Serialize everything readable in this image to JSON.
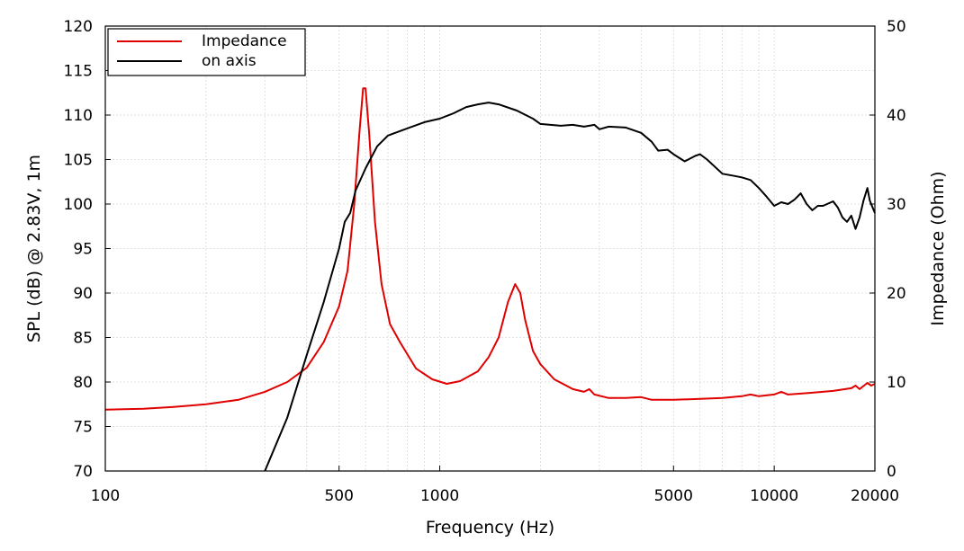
{
  "chart_data": {
    "type": "line",
    "xlabel": "Frequency (Hz)",
    "ylabel": "SPL (dB) @ 2.83V, 1m",
    "y2label": "Impedance (Ohm)",
    "xscale": "log",
    "xlim": [
      100,
      20000
    ],
    "ylim": [
      70,
      120
    ],
    "y2lim": [
      0,
      50
    ],
    "grid": true,
    "legend_position": "top-left",
    "xticks": [
      100,
      500,
      1000,
      5000,
      10000,
      20000
    ],
    "xtick_labels": [
      "100",
      "500",
      "1000",
      "5000",
      "10000",
      "20000"
    ],
    "yticks": [
      70,
      75,
      80,
      85,
      90,
      95,
      100,
      105,
      110,
      115,
      120
    ],
    "ytick_labels": [
      "70",
      "75",
      "80",
      "85",
      "90",
      "95",
      "100",
      "105",
      "110",
      "115",
      "120"
    ],
    "y2ticks": [
      0,
      10,
      20,
      30,
      40,
      50
    ],
    "y2tick_labels": [
      "0",
      "10",
      "20",
      "30",
      "40",
      "50"
    ],
    "series": [
      {
        "name": "Impedance",
        "axis": "right",
        "color": "#e00000",
        "points": [
          [
            100,
            6.9
          ],
          [
            130,
            7.0
          ],
          [
            160,
            7.2
          ],
          [
            200,
            7.5
          ],
          [
            250,
            8.0
          ],
          [
            300,
            8.9
          ],
          [
            350,
            10.0
          ],
          [
            400,
            11.6
          ],
          [
            450,
            14.5
          ],
          [
            500,
            18.5
          ],
          [
            530,
            22.5
          ],
          [
            555,
            30.0
          ],
          [
            575,
            38.0
          ],
          [
            590,
            43.0
          ],
          [
            600,
            43.0
          ],
          [
            615,
            38.0
          ],
          [
            640,
            28.0
          ],
          [
            670,
            21.0
          ],
          [
            710,
            16.5
          ],
          [
            760,
            14.5
          ],
          [
            850,
            11.5
          ],
          [
            950,
            10.3
          ],
          [
            1050,
            9.8
          ],
          [
            1150,
            10.1
          ],
          [
            1300,
            11.2
          ],
          [
            1400,
            12.8
          ],
          [
            1500,
            15.0
          ],
          [
            1600,
            19.0
          ],
          [
            1680,
            21.0
          ],
          [
            1740,
            20.0
          ],
          [
            1800,
            17.0
          ],
          [
            1900,
            13.5
          ],
          [
            2000,
            12.0
          ],
          [
            2200,
            10.3
          ],
          [
            2500,
            9.2
          ],
          [
            2700,
            8.9
          ],
          [
            2800,
            9.2
          ],
          [
            2900,
            8.6
          ],
          [
            3200,
            8.2
          ],
          [
            3600,
            8.2
          ],
          [
            4000,
            8.3
          ],
          [
            4300,
            8.0
          ],
          [
            5000,
            8.0
          ],
          [
            6000,
            8.1
          ],
          [
            7000,
            8.2
          ],
          [
            8000,
            8.4
          ],
          [
            8500,
            8.6
          ],
          [
            9000,
            8.4
          ],
          [
            10000,
            8.6
          ],
          [
            10500,
            8.9
          ],
          [
            11000,
            8.6
          ],
          [
            12000,
            8.7
          ],
          [
            13000,
            8.8
          ],
          [
            15000,
            9.0
          ],
          [
            17000,
            9.3
          ],
          [
            17500,
            9.6
          ],
          [
            18000,
            9.2
          ],
          [
            19000,
            9.9
          ],
          [
            19500,
            9.6
          ],
          [
            20000,
            9.8
          ]
        ]
      },
      {
        "name": "on axis",
        "axis": "left",
        "color": "#000000",
        "points": [
          [
            300,
            70.0
          ],
          [
            350,
            76.0
          ],
          [
            400,
            83.0
          ],
          [
            450,
            89.0
          ],
          [
            500,
            95.0
          ],
          [
            520,
            98.0
          ],
          [
            540,
            99.0
          ],
          [
            560,
            101.5
          ],
          [
            600,
            104.0
          ],
          [
            650,
            106.5
          ],
          [
            700,
            107.7
          ],
          [
            800,
            108.5
          ],
          [
            900,
            109.2
          ],
          [
            1000,
            109.6
          ],
          [
            1100,
            110.2
          ],
          [
            1200,
            110.9
          ],
          [
            1300,
            111.2
          ],
          [
            1400,
            111.4
          ],
          [
            1500,
            111.2
          ],
          [
            1700,
            110.5
          ],
          [
            1900,
            109.6
          ],
          [
            2000,
            109.0
          ],
          [
            2300,
            108.8
          ],
          [
            2500,
            108.9
          ],
          [
            2700,
            108.7
          ],
          [
            2900,
            108.9
          ],
          [
            3000,
            108.4
          ],
          [
            3200,
            108.7
          ],
          [
            3600,
            108.6
          ],
          [
            4000,
            108.0
          ],
          [
            4300,
            107.0
          ],
          [
            4500,
            106.0
          ],
          [
            4800,
            106.1
          ],
          [
            5000,
            105.6
          ],
          [
            5400,
            104.8
          ],
          [
            5800,
            105.4
          ],
          [
            6000,
            105.6
          ],
          [
            6300,
            105.0
          ],
          [
            7000,
            103.4
          ],
          [
            7500,
            103.2
          ],
          [
            8000,
            103.0
          ],
          [
            8500,
            102.7
          ],
          [
            9000,
            101.8
          ],
          [
            9500,
            100.8
          ],
          [
            10000,
            99.8
          ],
          [
            10500,
            100.2
          ],
          [
            11000,
            100.0
          ],
          [
            11500,
            100.5
          ],
          [
            12000,
            101.2
          ],
          [
            12500,
            100.0
          ],
          [
            13000,
            99.3
          ],
          [
            13500,
            99.8
          ],
          [
            14000,
            99.8
          ],
          [
            15000,
            100.3
          ],
          [
            15500,
            99.6
          ],
          [
            16000,
            98.5
          ],
          [
            16500,
            98.0
          ],
          [
            17000,
            98.7
          ],
          [
            17500,
            97.2
          ],
          [
            18000,
            98.5
          ],
          [
            18500,
            100.4
          ],
          [
            19000,
            101.8
          ],
          [
            19300,
            100.4
          ],
          [
            19600,
            99.8
          ],
          [
            20000,
            99.0
          ]
        ]
      }
    ]
  }
}
